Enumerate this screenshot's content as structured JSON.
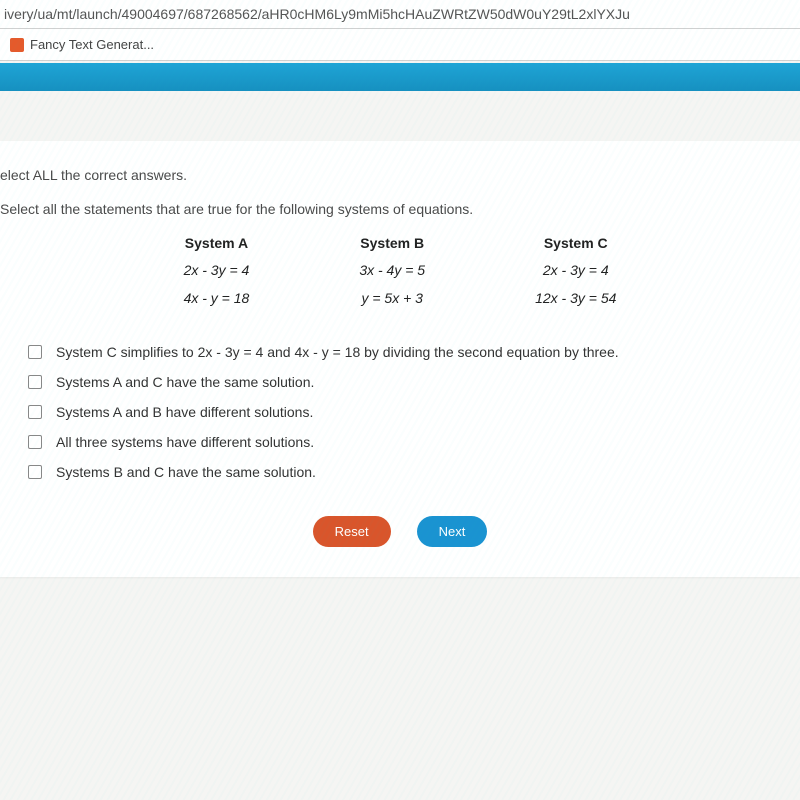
{
  "browser": {
    "url_fragment": "ivery/ua/mt/launch/49004697/687268562/aHR0cHM6Ly9mMi5hcHAuZWRtZW50dW0uY29tL2xlYXJu",
    "bookmark_label": "Fancy Text Generat..."
  },
  "question": {
    "line1": "elect ALL the correct answers.",
    "line2": "Select all the statements that are true for the following systems of equations."
  },
  "systems": {
    "a": {
      "title": "System A",
      "eq1": "2x - 3y = 4",
      "eq2": "4x - y = 18"
    },
    "b": {
      "title": "System B",
      "eq1": "3x - 4y = 5",
      "eq2": "y = 5x + 3"
    },
    "c": {
      "title": "System C",
      "eq1": "2x - 3y = 4",
      "eq2": "12x - 3y = 54"
    }
  },
  "options": {
    "o1": "System C simplifies to 2x - 3y = 4 and 4x - y = 18 by dividing the second equation by three.",
    "o2": "Systems A and C have the same solution.",
    "o3": "Systems A and B have different solutions.",
    "o4": "All three systems have different solutions.",
    "o5": "Systems B and C have the same solution."
  },
  "buttons": {
    "reset": "Reset",
    "next": "Next"
  }
}
